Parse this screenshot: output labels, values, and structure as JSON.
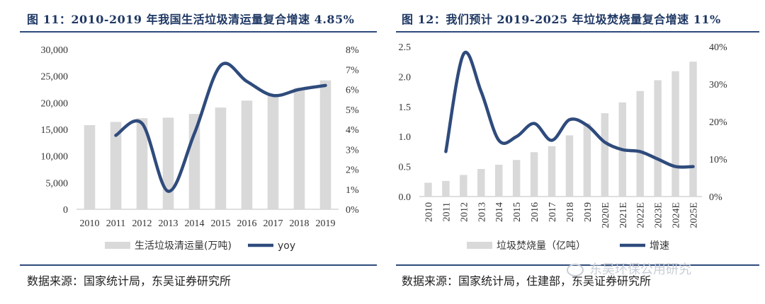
{
  "left": {
    "title": "图 11：2010-2019 年我国生活垃圾清运量复合增速 4.85%",
    "source": "数据来源：国家统计局，东吴证券研究所"
  },
  "right": {
    "title": "图 12：我们预计 2019-2025 年垃圾焚烧量复合增速 11%",
    "source": "数据来源：国家统计局，住建部，东吴证券研究所"
  },
  "watermark": "东吴环保公用研究",
  "colors": {
    "bar": "#d9d9d9",
    "line": "#2f4b7c",
    "rule": "#2f4b7c",
    "title": "#1f3864"
  },
  "chart_data": [
    {
      "type": "bar",
      "categories": [
        "2010",
        "2011",
        "2012",
        "2013",
        "2014",
        "2015",
        "2016",
        "2017",
        "2018",
        "2019"
      ],
      "series": [
        {
          "name": "生活垃圾清运量(万吨)",
          "axis": "left",
          "values": [
            15800,
            16400,
            17100,
            17200,
            17900,
            19100,
            20400,
            21500,
            22800,
            24200
          ]
        },
        {
          "name": "yoy",
          "type": "line",
          "axis": "right",
          "values": [
            null,
            3.7,
            4.3,
            0.9,
            3.8,
            7.2,
            6.4,
            5.7,
            6.0,
            6.2
          ]
        }
      ],
      "y_left": {
        "min": 0,
        "max": 30000,
        "ticks": [
          "0",
          "5,000",
          "10,000",
          "15,000",
          "20,000",
          "25,000",
          "30,000"
        ]
      },
      "y_right": {
        "min": 0,
        "max": 8,
        "ticks": [
          "0%",
          "1%",
          "2%",
          "3%",
          "4%",
          "5%",
          "6%",
          "7%",
          "8%"
        ]
      },
      "legend_position": "bottom"
    },
    {
      "type": "bar",
      "categories": [
        "2010",
        "2011",
        "2012",
        "2013",
        "2014",
        "2015",
        "2016",
        "2017",
        "2018",
        "2019",
        "2020E",
        "2021E",
        "2022E",
        "2023E",
        "2024E",
        "2025E"
      ],
      "series": [
        {
          "name": "垃圾焚烧量（亿吨）",
          "axis": "left",
          "values": [
            0.23,
            0.26,
            0.36,
            0.46,
            0.53,
            0.61,
            0.74,
            0.84,
            1.02,
            1.22,
            1.39,
            1.57,
            1.76,
            1.94,
            2.09,
            2.25
          ]
        },
        {
          "name": "增速",
          "type": "line",
          "axis": "right",
          "values": [
            null,
            12.0,
            38.0,
            28.0,
            15.0,
            16.0,
            19.5,
            15.0,
            20.5,
            19.0,
            14.5,
            12.5,
            12.0,
            10.0,
            8.0,
            8.0
          ]
        }
      ],
      "y_left": {
        "min": 0,
        "max": 2.5,
        "ticks": [
          "0.0",
          "0.5",
          "1.0",
          "1.5",
          "2.0",
          "2.5"
        ]
      },
      "y_right": {
        "min": 0,
        "max": 40,
        "ticks": [
          "0%",
          "10%",
          "20%",
          "30%",
          "40%"
        ]
      },
      "legend_position": "bottom"
    }
  ]
}
